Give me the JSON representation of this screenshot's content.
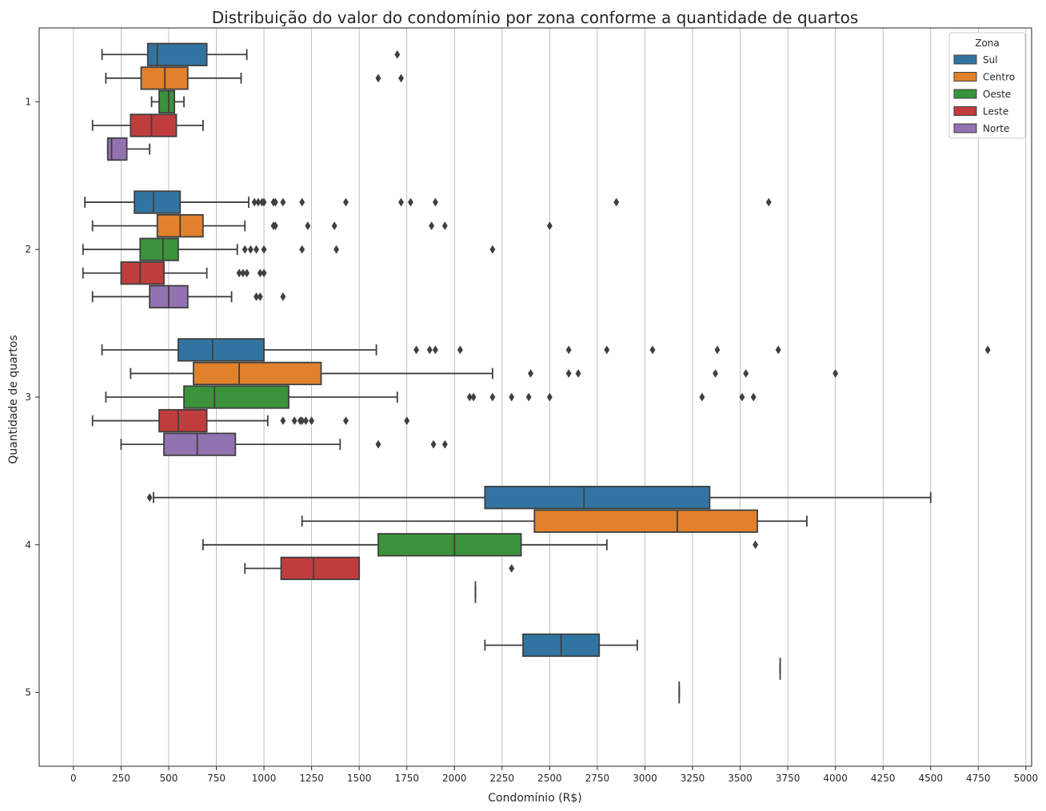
{
  "chart_data": {
    "type": "box",
    "orientation": "horizontal",
    "title": "Distribuição do valor do condomínio por zona conforme a quantidade de quartos",
    "xlabel": "Condomínio (R$)",
    "ylabel": "Quantidade de quartos",
    "xlim": [
      -180,
      5030
    ],
    "x_ticks": [
      0,
      250,
      500,
      750,
      1000,
      1250,
      1500,
      1750,
      2000,
      2250,
      2500,
      2750,
      3000,
      3250,
      3500,
      3750,
      4000,
      4250,
      4500,
      4750,
      5000
    ],
    "categories": [
      "1",
      "2",
      "3",
      "4",
      "5"
    ],
    "grid": "vertical",
    "legend": {
      "title": "Zona",
      "placement": "top-right"
    },
    "series": [
      {
        "name": "Sul",
        "color": "#3274a1",
        "boxes": [
          {
            "category": "1",
            "whisker_low": 150,
            "q1": 390,
            "median": 440,
            "q3": 700,
            "whisker_high": 910,
            "outliers": [
              1700
            ]
          },
          {
            "category": "2",
            "whisker_low": 60,
            "q1": 320,
            "median": 420,
            "q3": 560,
            "whisker_high": 920,
            "outliers": [
              950,
              970,
              990,
              1000,
              1050,
              1060,
              1100,
              1200,
              1430,
              1720,
              1770,
              1900,
              2850,
              3650
            ]
          },
          {
            "category": "3",
            "whisker_low": 150,
            "q1": 550,
            "median": 730,
            "q3": 1000,
            "whisker_high": 1590,
            "outliers": [
              1800,
              1870,
              1900,
              2030,
              2600,
              2800,
              3040,
              3380,
              3700,
              4800
            ]
          },
          {
            "category": "4",
            "whisker_low": 420,
            "q1": 2160,
            "median": 2680,
            "q3": 3340,
            "whisker_high": 4500,
            "outliers": [
              400
            ]
          },
          {
            "category": "5",
            "whisker_low": 2160,
            "q1": 2360,
            "median": 2560,
            "q3": 2760,
            "whisker_high": 2960,
            "outliers": []
          }
        ]
      },
      {
        "name": "Centro",
        "color": "#e1812c",
        "boxes": [
          {
            "category": "1",
            "whisker_low": 170,
            "q1": 355,
            "median": 480,
            "q3": 600,
            "whisker_high": 880,
            "outliers": [
              1600,
              1720
            ]
          },
          {
            "category": "2",
            "whisker_low": 100,
            "q1": 440,
            "median": 560,
            "q3": 680,
            "whisker_high": 900,
            "outliers": [
              1050,
              1060,
              1230,
              1370,
              1880,
              1950,
              2500
            ]
          },
          {
            "category": "3",
            "whisker_low": 300,
            "q1": 630,
            "median": 870,
            "q3": 1300,
            "whisker_high": 2200,
            "outliers": [
              2400,
              2600,
              2650,
              3370,
              3530,
              4000
            ]
          },
          {
            "category": "4",
            "whisker_low": 1200,
            "q1": 2420,
            "median": 3170,
            "q3": 3590,
            "whisker_high": 3850,
            "outliers": []
          },
          {
            "category": "5",
            "whisker_low": 3710,
            "q1": 3710,
            "median": 3710,
            "q3": 3710,
            "whisker_high": 3710,
            "outliers": []
          }
        ]
      },
      {
        "name": "Oeste",
        "color": "#3a923a",
        "boxes": [
          {
            "category": "1",
            "whisker_low": 410,
            "q1": 450,
            "median": 500,
            "q3": 530,
            "whisker_high": 580,
            "outliers": []
          },
          {
            "category": "2",
            "whisker_low": 50,
            "q1": 350,
            "median": 470,
            "q3": 550,
            "whisker_high": 860,
            "outliers": [
              900,
              930,
              960,
              1000,
              1200,
              1380,
              2200
            ]
          },
          {
            "category": "3",
            "whisker_low": 170,
            "q1": 580,
            "median": 740,
            "q3": 1130,
            "whisker_high": 1700,
            "outliers": [
              2080,
              2100,
              2200,
              2300,
              2390,
              2500,
              3300,
              3510,
              3570
            ]
          },
          {
            "category": "4",
            "whisker_low": 680,
            "q1": 1600,
            "median": 2000,
            "q3": 2350,
            "whisker_high": 2800,
            "outliers": [
              3580
            ]
          },
          {
            "category": "5",
            "whisker_low": 3180,
            "q1": 3180,
            "median": 3180,
            "q3": 3180,
            "whisker_high": 3180,
            "outliers": []
          }
        ]
      },
      {
        "name": "Leste",
        "color": "#c03d3e",
        "boxes": [
          {
            "category": "1",
            "whisker_low": 100,
            "q1": 300,
            "median": 410,
            "q3": 540,
            "whisker_high": 680,
            "outliers": []
          },
          {
            "category": "2",
            "whisker_low": 50,
            "q1": 250,
            "median": 350,
            "q3": 475,
            "whisker_high": 700,
            "outliers": [
              870,
              890,
              910,
              980,
              1000
            ]
          },
          {
            "category": "3",
            "whisker_low": 100,
            "q1": 450,
            "median": 550,
            "q3": 700,
            "whisker_high": 1020,
            "outliers": [
              1100,
              1160,
              1190,
              1200,
              1220,
              1250,
              1430,
              1750
            ]
          },
          {
            "category": "4",
            "whisker_low": 900,
            "q1": 1090,
            "median": 1260,
            "q3": 1500,
            "whisker_high": 1500,
            "outliers": [
              2300
            ]
          }
        ]
      },
      {
        "name": "Norte",
        "color": "#9372b2",
        "boxes": [
          {
            "category": "1",
            "whisker_low": 180,
            "q1": 180,
            "median": 200,
            "q3": 280,
            "whisker_high": 400,
            "outliers": []
          },
          {
            "category": "2",
            "whisker_low": 100,
            "q1": 400,
            "median": 500,
            "q3": 600,
            "whisker_high": 830,
            "outliers": [
              960,
              980,
              1100
            ]
          },
          {
            "category": "3",
            "whisker_low": 250,
            "q1": 475,
            "median": 650,
            "q3": 850,
            "whisker_high": 1400,
            "outliers": [
              1600,
              1890,
              1950
            ]
          },
          {
            "category": "4",
            "whisker_low": 2110,
            "q1": 2110,
            "median": 2110,
            "q3": 2110,
            "whisker_high": 2110,
            "outliers": []
          }
        ]
      }
    ]
  }
}
